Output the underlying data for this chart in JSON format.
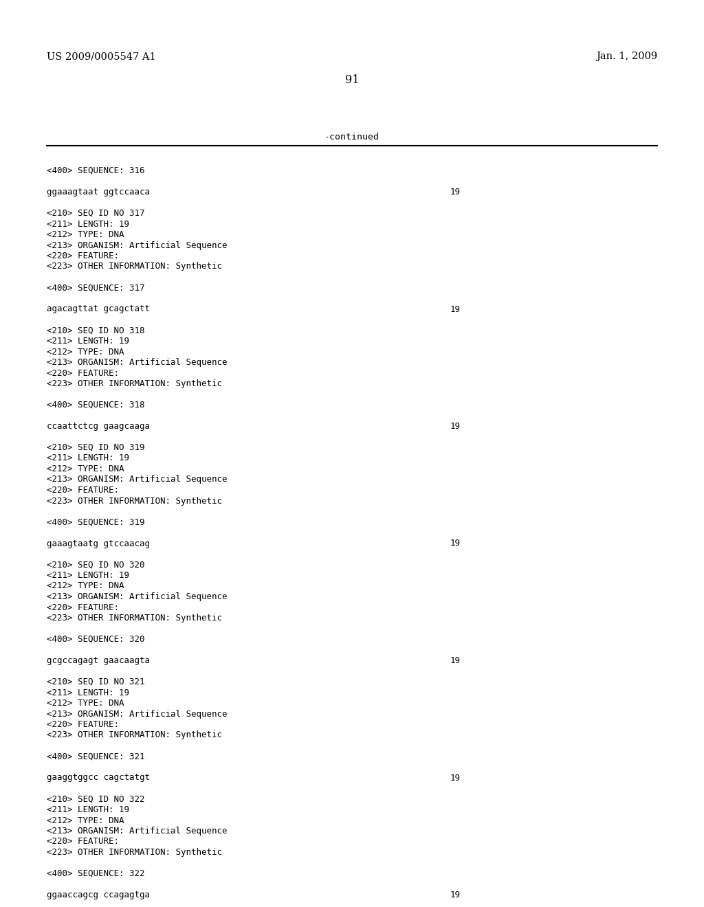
{
  "background_color": "#ffffff",
  "header_left": "US 2009/0005547 A1",
  "header_right": "Jan. 1, 2009",
  "page_number": "91",
  "continued_label": "-continued",
  "header_font_size": 10.5,
  "page_num_font_size": 11.5,
  "mono_font_size": 9.0,
  "continued_font_size": 9.5,
  "content_blocks": [
    {
      "lines": [
        {
          "text": "<400> SEQUENCE: 316",
          "indent": 0,
          "bold": false
        },
        {
          "text": "",
          "indent": 0,
          "bold": false
        },
        {
          "text": "ggaaagtaat ggtccaaca",
          "indent": 0,
          "bold": false,
          "num": "19"
        }
      ]
    },
    {
      "lines": [
        {
          "text": "",
          "indent": 0,
          "bold": false
        },
        {
          "text": "<210> SEQ ID NO 317",
          "indent": 0,
          "bold": false
        },
        {
          "text": "<211> LENGTH: 19",
          "indent": 0,
          "bold": false
        },
        {
          "text": "<212> TYPE: DNA",
          "indent": 0,
          "bold": false
        },
        {
          "text": "<213> ORGANISM: Artificial Sequence",
          "indent": 0,
          "bold": false
        },
        {
          "text": "<220> FEATURE:",
          "indent": 0,
          "bold": false
        },
        {
          "text": "<223> OTHER INFORMATION: Synthetic",
          "indent": 0,
          "bold": false
        },
        {
          "text": "",
          "indent": 0,
          "bold": false
        },
        {
          "text": "<400> SEQUENCE: 317",
          "indent": 0,
          "bold": false
        },
        {
          "text": "",
          "indent": 0,
          "bold": false
        },
        {
          "text": "agacagttat gcagctatt",
          "indent": 0,
          "bold": false,
          "num": "19"
        }
      ]
    },
    {
      "lines": [
        {
          "text": "",
          "indent": 0,
          "bold": false
        },
        {
          "text": "<210> SEQ ID NO 318",
          "indent": 0,
          "bold": false
        },
        {
          "text": "<211> LENGTH: 19",
          "indent": 0,
          "bold": false
        },
        {
          "text": "<212> TYPE: DNA",
          "indent": 0,
          "bold": false
        },
        {
          "text": "<213> ORGANISM: Artificial Sequence",
          "indent": 0,
          "bold": false
        },
        {
          "text": "<220> FEATURE:",
          "indent": 0,
          "bold": false
        },
        {
          "text": "<223> OTHER INFORMATION: Synthetic",
          "indent": 0,
          "bold": false
        },
        {
          "text": "",
          "indent": 0,
          "bold": false
        },
        {
          "text": "<400> SEQUENCE: 318",
          "indent": 0,
          "bold": false
        },
        {
          "text": "",
          "indent": 0,
          "bold": false
        },
        {
          "text": "ccaattctcg gaagcaaga",
          "indent": 0,
          "bold": false,
          "num": "19"
        }
      ]
    },
    {
      "lines": [
        {
          "text": "",
          "indent": 0,
          "bold": false
        },
        {
          "text": "<210> SEQ ID NO 319",
          "indent": 0,
          "bold": false
        },
        {
          "text": "<211> LENGTH: 19",
          "indent": 0,
          "bold": false
        },
        {
          "text": "<212> TYPE: DNA",
          "indent": 0,
          "bold": false
        },
        {
          "text": "<213> ORGANISM: Artificial Sequence",
          "indent": 0,
          "bold": false
        },
        {
          "text": "<220> FEATURE:",
          "indent": 0,
          "bold": false
        },
        {
          "text": "<223> OTHER INFORMATION: Synthetic",
          "indent": 0,
          "bold": false
        },
        {
          "text": "",
          "indent": 0,
          "bold": false
        },
        {
          "text": "<400> SEQUENCE: 319",
          "indent": 0,
          "bold": false
        },
        {
          "text": "",
          "indent": 0,
          "bold": false
        },
        {
          "text": "gaaagtaatg gtccaacag",
          "indent": 0,
          "bold": false,
          "num": "19"
        }
      ]
    },
    {
      "lines": [
        {
          "text": "",
          "indent": 0,
          "bold": false
        },
        {
          "text": "<210> SEQ ID NO 320",
          "indent": 0,
          "bold": false
        },
        {
          "text": "<211> LENGTH: 19",
          "indent": 0,
          "bold": false
        },
        {
          "text": "<212> TYPE: DNA",
          "indent": 0,
          "bold": false
        },
        {
          "text": "<213> ORGANISM: Artificial Sequence",
          "indent": 0,
          "bold": false
        },
        {
          "text": "<220> FEATURE:",
          "indent": 0,
          "bold": false
        },
        {
          "text": "<223> OTHER INFORMATION: Synthetic",
          "indent": 0,
          "bold": false
        },
        {
          "text": "",
          "indent": 0,
          "bold": false
        },
        {
          "text": "<400> SEQUENCE: 320",
          "indent": 0,
          "bold": false
        },
        {
          "text": "",
          "indent": 0,
          "bold": false
        },
        {
          "text": "gcgccagagt gaacaagta",
          "indent": 0,
          "bold": false,
          "num": "19"
        }
      ]
    },
    {
      "lines": [
        {
          "text": "",
          "indent": 0,
          "bold": false
        },
        {
          "text": "<210> SEQ ID NO 321",
          "indent": 0,
          "bold": false
        },
        {
          "text": "<211> LENGTH: 19",
          "indent": 0,
          "bold": false
        },
        {
          "text": "<212> TYPE: DNA",
          "indent": 0,
          "bold": false
        },
        {
          "text": "<213> ORGANISM: Artificial Sequence",
          "indent": 0,
          "bold": false
        },
        {
          "text": "<220> FEATURE:",
          "indent": 0,
          "bold": false
        },
        {
          "text": "<223> OTHER INFORMATION: Synthetic",
          "indent": 0,
          "bold": false
        },
        {
          "text": "",
          "indent": 0,
          "bold": false
        },
        {
          "text": "<400> SEQUENCE: 321",
          "indent": 0,
          "bold": false
        },
        {
          "text": "",
          "indent": 0,
          "bold": false
        },
        {
          "text": "gaaggtggcc cagctatgt",
          "indent": 0,
          "bold": false,
          "num": "19"
        }
      ]
    },
    {
      "lines": [
        {
          "text": "",
          "indent": 0,
          "bold": false
        },
        {
          "text": "<210> SEQ ID NO 322",
          "indent": 0,
          "bold": false
        },
        {
          "text": "<211> LENGTH: 19",
          "indent": 0,
          "bold": false
        },
        {
          "text": "<212> TYPE: DNA",
          "indent": 0,
          "bold": false
        },
        {
          "text": "<213> ORGANISM: Artificial Sequence",
          "indent": 0,
          "bold": false
        },
        {
          "text": "<220> FEATURE:",
          "indent": 0,
          "bold": false
        },
        {
          "text": "<223> OTHER INFORMATION: Synthetic",
          "indent": 0,
          "bold": false
        },
        {
          "text": "",
          "indent": 0,
          "bold": false
        },
        {
          "text": "<400> SEQUENCE: 322",
          "indent": 0,
          "bold": false
        },
        {
          "text": "",
          "indent": 0,
          "bold": false
        },
        {
          "text": "ggaaccagcg ccagagtga",
          "indent": 0,
          "bold": false,
          "num": "19"
        }
      ]
    }
  ]
}
